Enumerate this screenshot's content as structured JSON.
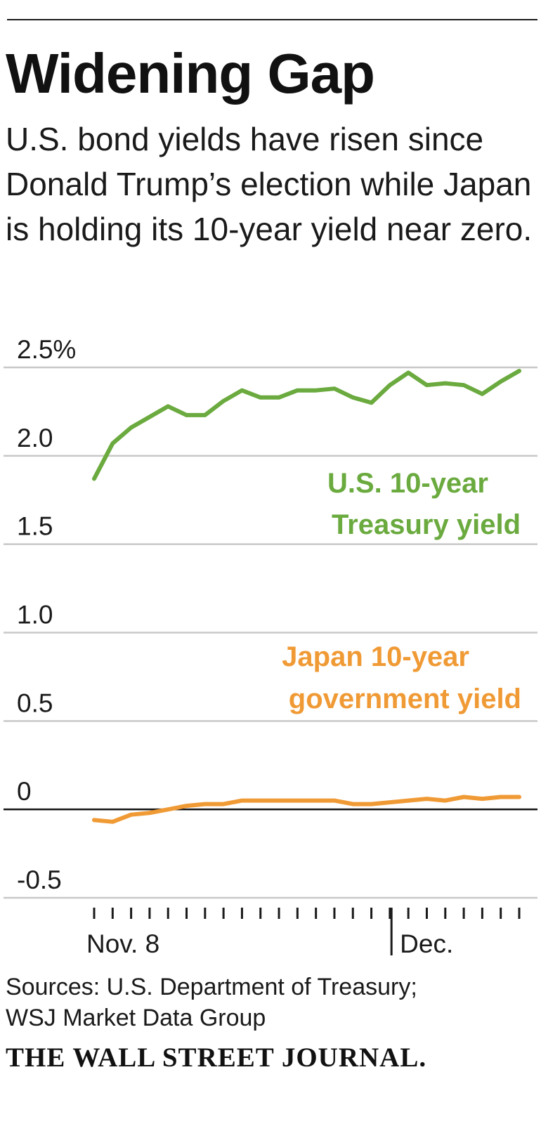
{
  "header": {
    "title": "Widening Gap",
    "subtitle": "U.S. bond yields have risen since Donald Trump’s election while Japan is holding its 10-year yield near zero."
  },
  "chart_data": {
    "type": "line",
    "title": "Widening Gap",
    "xlabel": "",
    "ylabel": "",
    "ylim": [
      -0.5,
      2.5
    ],
    "yticks": [
      {
        "value": 2.5,
        "label": "2.5%"
      },
      {
        "value": 2.0,
        "label": "2.0"
      },
      {
        "value": 1.5,
        "label": "1.5"
      },
      {
        "value": 1.0,
        "label": "1.0"
      },
      {
        "value": 0.5,
        "label": "0.5"
      },
      {
        "value": 0,
        "label": "0"
      },
      {
        "value": -0.5,
        "label": "-0.5"
      }
    ],
    "grid": true,
    "x_tick_count": 24,
    "x_labels": [
      {
        "index": 0,
        "label": "Nov. 8"
      },
      {
        "index": 17,
        "label": "Dec."
      }
    ],
    "x": [
      0,
      1,
      2,
      3,
      4,
      5,
      6,
      7,
      8,
      9,
      10,
      11,
      12,
      13,
      14,
      15,
      16,
      17,
      18,
      19,
      20,
      21,
      22,
      23
    ],
    "series": [
      {
        "name": "U.S. 10-year Treasury yield",
        "label_lines": [
          "U.S. 10-year",
          "Treasury yield"
        ],
        "color": "#6aaa3e",
        "values": [
          1.87,
          2.07,
          2.16,
          2.22,
          2.28,
          2.23,
          2.23,
          2.31,
          2.37,
          2.33,
          2.33,
          2.37,
          2.37,
          2.38,
          2.33,
          2.3,
          2.4,
          2.47,
          2.4,
          2.41,
          2.4,
          2.35,
          2.42,
          2.48
        ]
      },
      {
        "name": "Japan 10-year government yield",
        "label_lines": [
          "Japan 10-year",
          "government yield"
        ],
        "color": "#f09a35",
        "values": [
          -0.06,
          -0.07,
          -0.03,
          -0.02,
          0.0,
          0.02,
          0.03,
          0.03,
          0.05,
          0.05,
          0.05,
          0.05,
          0.05,
          0.05,
          0.03,
          0.03,
          0.04,
          0.05,
          0.06,
          0.05,
          0.07,
          0.06,
          0.07,
          0.07
        ]
      }
    ]
  },
  "footer": {
    "sources_line1": "Sources: U.S. Department of Treasury;",
    "sources_line2": "WSJ Market Data Group",
    "masthead": "THE WALL STREET JOURNAL."
  }
}
